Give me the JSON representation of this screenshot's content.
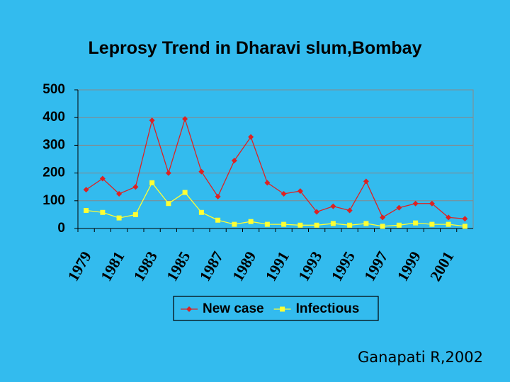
{
  "chart_data": {
    "type": "line",
    "title": "Leprosy Trend in Dharavi slum,Bombay",
    "categories": [
      "1979",
      null,
      "1981",
      null,
      "1983",
      null,
      "1985",
      null,
      "1987",
      null,
      "1989",
      null,
      "1991",
      null,
      "1993",
      null,
      "1995",
      null,
      "1997",
      null,
      "1999",
      null,
      "2001",
      null
    ],
    "series": [
      {
        "name": "New case",
        "color": "#dd2222",
        "marker": "diamond",
        "values": [
          140,
          180,
          125,
          150,
          390,
          200,
          395,
          205,
          115,
          245,
          330,
          165,
          125,
          135,
          60,
          80,
          65,
          170,
          40,
          75,
          90,
          90,
          40,
          35
        ]
      },
      {
        "name": "Infectious",
        "color": "#ffff33",
        "marker": "square",
        "values": [
          65,
          58,
          38,
          50,
          165,
          90,
          130,
          58,
          30,
          15,
          25,
          15,
          15,
          12,
          12,
          18,
          12,
          18,
          8,
          12,
          20,
          15,
          15,
          8
        ]
      }
    ],
    "ylim": [
      0,
      500
    ],
    "yticks": [
      0,
      100,
      200,
      300,
      400,
      500
    ],
    "grid": true,
    "legend": "bottom"
  },
  "footer": "Ganapati R,2002"
}
